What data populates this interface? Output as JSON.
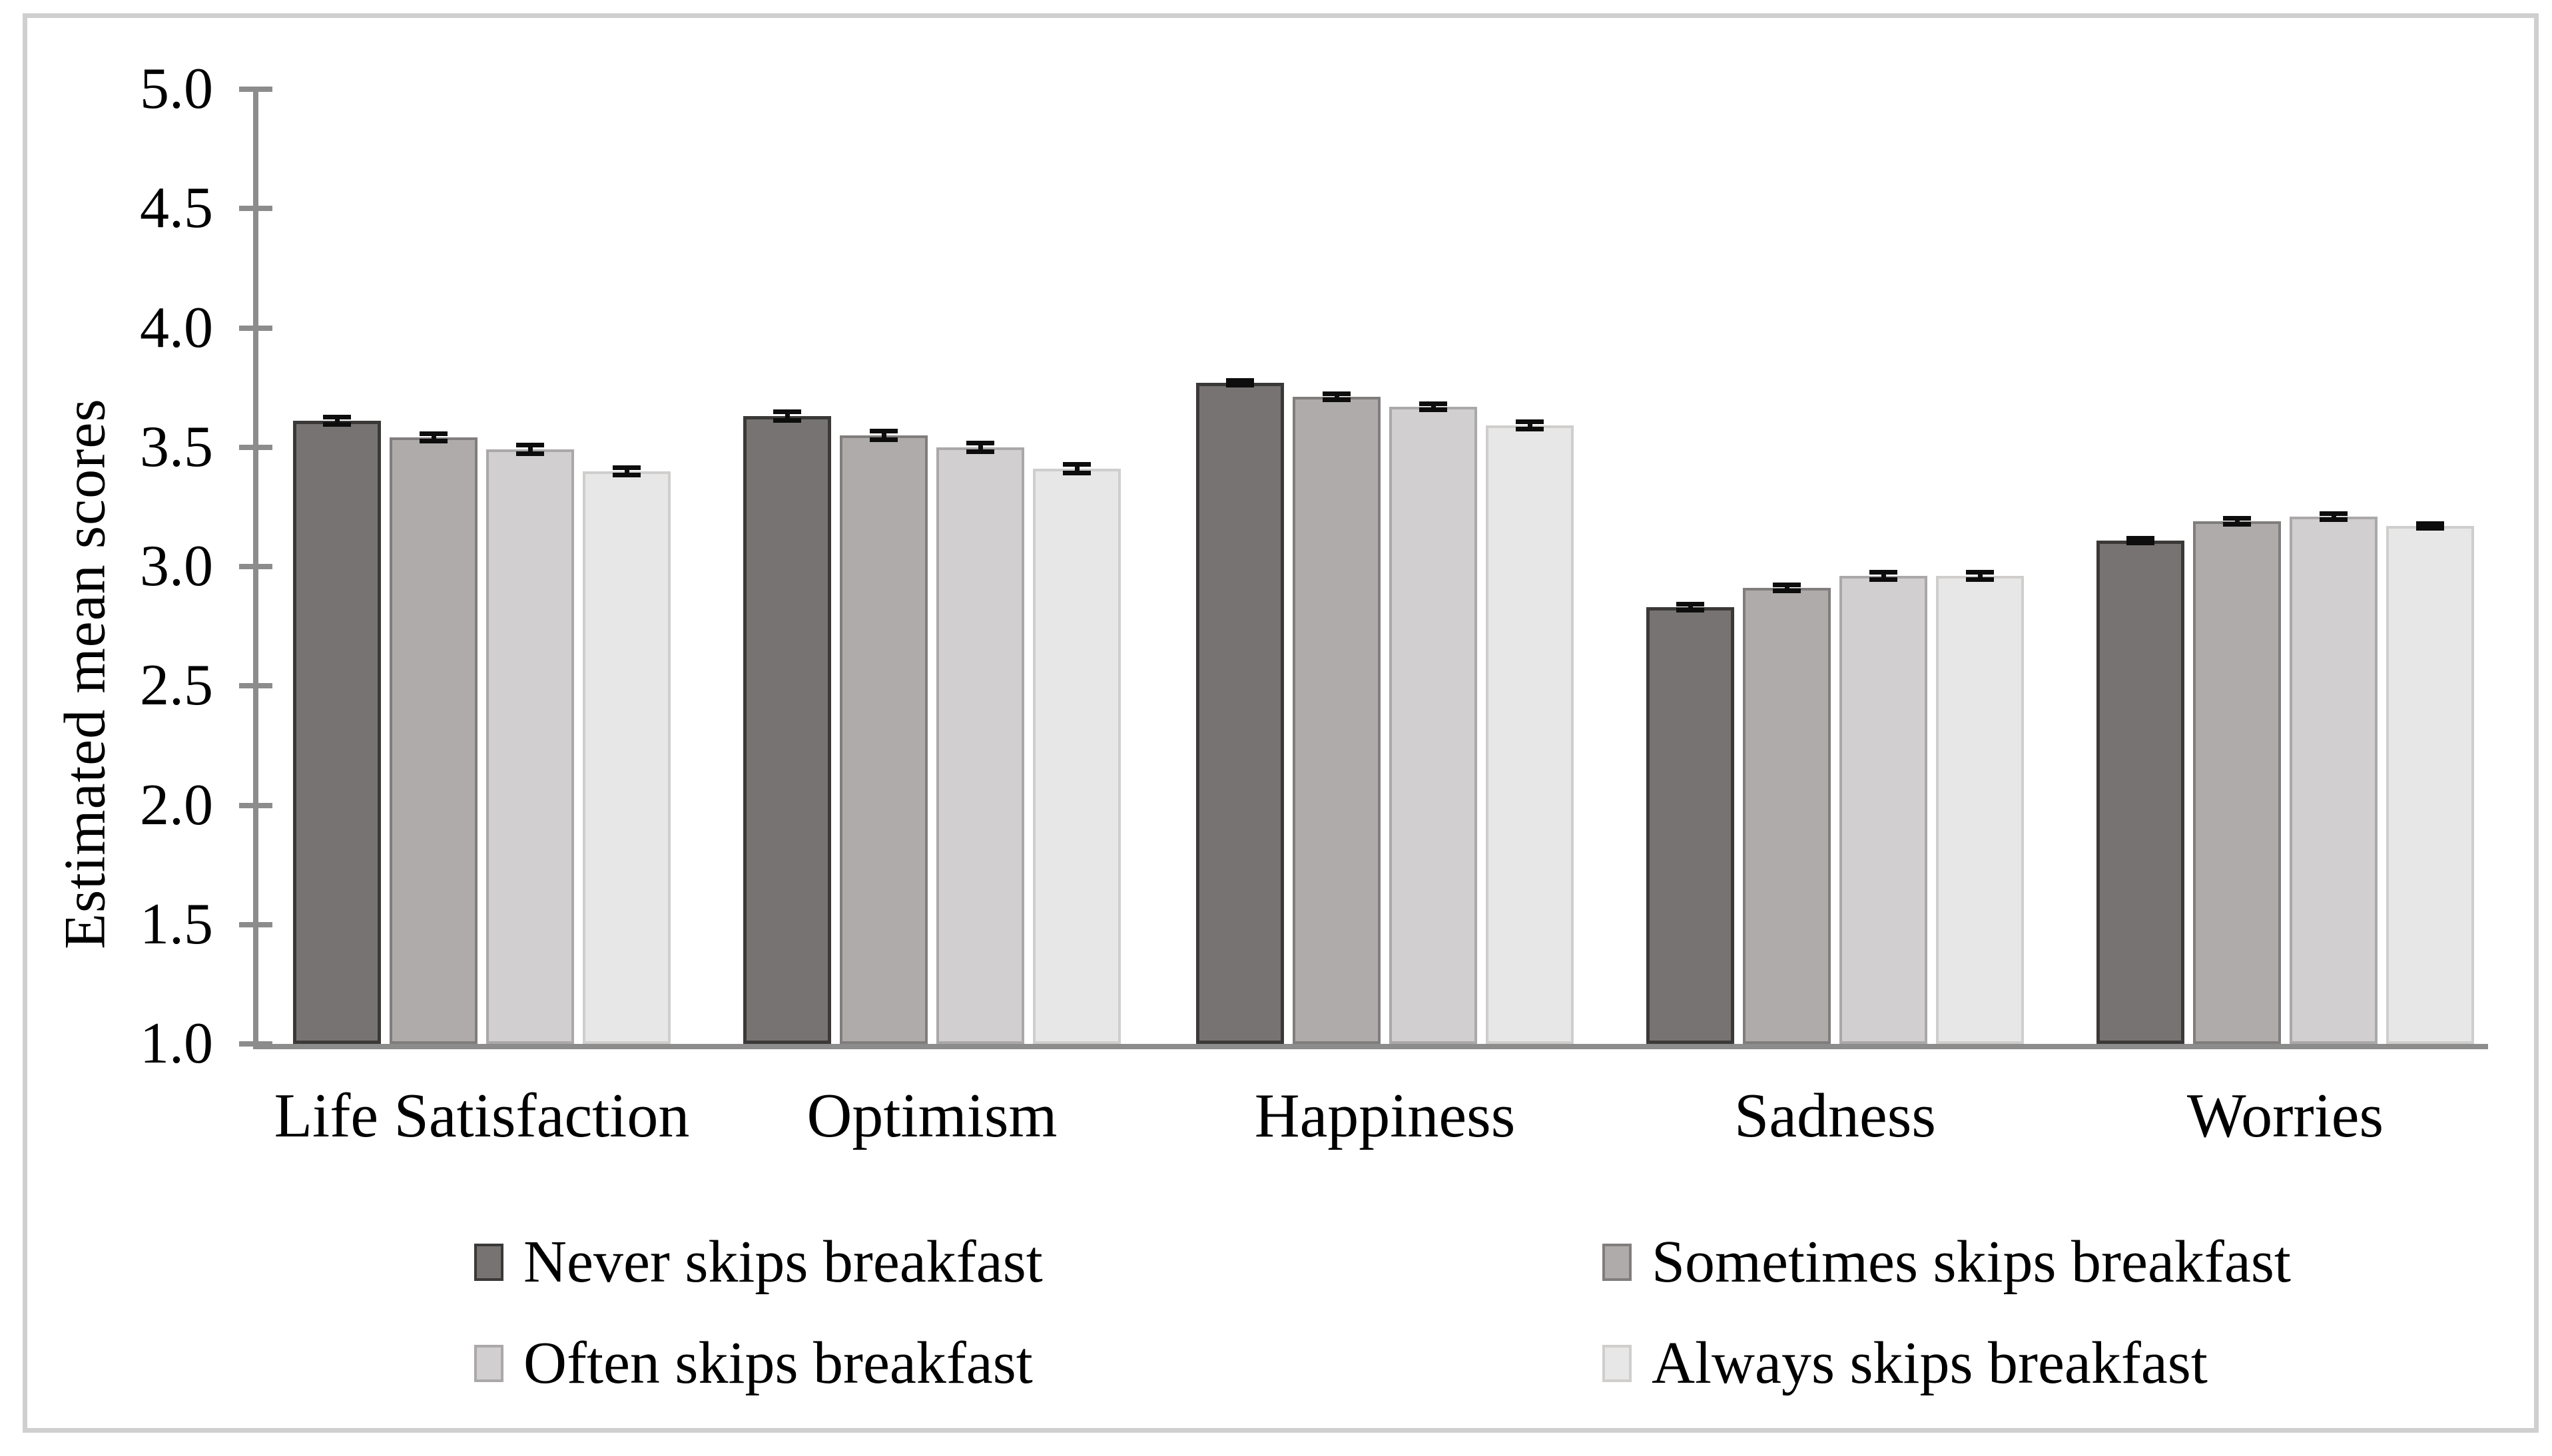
{
  "figure": {
    "background": "#ffffff",
    "frame_color": "#cfcfcf"
  },
  "chart_data": {
    "type": "bar",
    "title": "",
    "xlabel": "",
    "ylabel": "Estimated mean scores",
    "ylim": [
      1.0,
      5.0
    ],
    "ytick_step": 0.5,
    "ytick_labels": [
      "5.0",
      "4.5",
      "4.0",
      "3.5",
      "3.0",
      "2.5",
      "2.0",
      "1.5",
      "1.0"
    ],
    "grid": false,
    "legend_position": "bottom",
    "error_bars": true,
    "axis_color": "#8c8c8c",
    "error_bar_color": "#0d0d0d",
    "categories": [
      "Life Satisfaction",
      "Optimism",
      "Happiness",
      "Sadness",
      "Worries"
    ],
    "series": [
      {
        "name": "Never skips breakfast",
        "color": "#767372",
        "border_color": "#3b3938",
        "values": [
          3.61,
          3.63,
          3.77,
          2.83,
          3.11
        ],
        "errors": [
          0.025,
          0.027,
          0.02,
          0.022,
          0.02
        ]
      },
      {
        "name": "Sometimes skips breakfast",
        "color": "#aeabaa",
        "border_color": "#807d7c",
        "values": [
          3.54,
          3.55,
          3.71,
          2.91,
          3.19
        ],
        "errors": [
          0.025,
          0.027,
          0.022,
          0.022,
          0.022
        ]
      },
      {
        "name": "Often skips breakfast",
        "color": "#d1cfcf",
        "border_color": "#aaa8a8",
        "values": [
          3.49,
          3.5,
          3.67,
          2.96,
          3.21
        ],
        "errors": [
          0.028,
          0.027,
          0.022,
          0.025,
          0.022
        ]
      },
      {
        "name": "Always skips breakfast",
        "color": "#e8e7e7",
        "border_color": "#cfcecd",
        "values": [
          3.4,
          3.41,
          3.59,
          2.96,
          3.17
        ],
        "errors": [
          0.025,
          0.027,
          0.025,
          0.025,
          0.02
        ]
      }
    ]
  }
}
